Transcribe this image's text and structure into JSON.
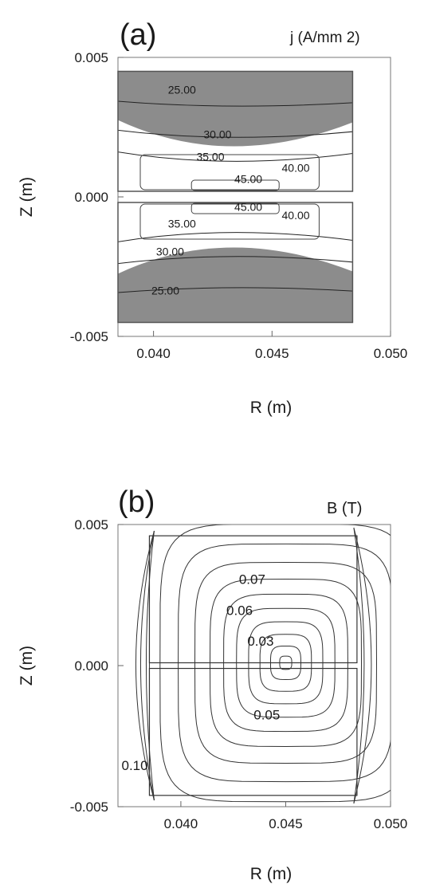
{
  "chart_data": [
    {
      "type": "contour",
      "panel_label": "(a)",
      "quantity_label": "j (A/mm 2)",
      "xlabel": "R (m)",
      "ylabel": "Z (m)",
      "xlim": [
        0.0385,
        0.05
      ],
      "ylim": [
        -0.005,
        0.005
      ],
      "x_ticks": [
        {
          "value": 0.04,
          "label": "0.040"
        },
        {
          "value": 0.045,
          "label": "0.045"
        },
        {
          "value": 0.05,
          "label": "0.050"
        }
      ],
      "y_ticks": [
        {
          "value": 0.005,
          "label": "0.005"
        },
        {
          "value": 0.0,
          "label": "0.000"
        },
        {
          "value": -0.005,
          "label": "-0.005"
        }
      ],
      "filled_color": "#8c8c8c",
      "coil_blocks": [
        {
          "r": [
            0.0385,
            0.0484
          ],
          "z": [
            0.0002,
            0.0045
          ]
        },
        {
          "r": [
            0.0385,
            0.0484
          ],
          "z": [
            -0.0045,
            -0.0002
          ]
        }
      ],
      "contour_labels": [
        {
          "text": "25.00",
          "r": 0.0412,
          "z": 0.0037
        },
        {
          "text": "30.00",
          "r": 0.0427,
          "z": 0.0021
        },
        {
          "text": "35.00",
          "r": 0.0424,
          "z": 0.0013
        },
        {
          "text": "45.00",
          "r": 0.044,
          "z": 0.0005
        },
        {
          "text": "40.00",
          "r": 0.046,
          "z": 0.0009
        },
        {
          "text": "45.00",
          "r": 0.044,
          "z": -0.0005
        },
        {
          "text": "40.00",
          "r": 0.046,
          "z": -0.0008
        },
        {
          "text": "35.00",
          "r": 0.0412,
          "z": -0.0011
        },
        {
          "text": "30.00",
          "r": 0.0407,
          "z": -0.0021
        },
        {
          "text": "25.00",
          "r": 0.0405,
          "z": -0.0035
        }
      ]
    },
    {
      "type": "contour",
      "panel_label": "(b)",
      "quantity_label": "B (T)",
      "xlabel": "R (m)",
      "ylabel": "Z (m)",
      "xlim": [
        0.037,
        0.05
      ],
      "ylim": [
        -0.005,
        0.005
      ],
      "x_ticks": [
        {
          "value": 0.04,
          "label": "0.040"
        },
        {
          "value": 0.045,
          "label": "0.045"
        },
        {
          "value": 0.05,
          "label": "0.050"
        }
      ],
      "y_ticks": [
        {
          "value": 0.005,
          "label": "0.005"
        },
        {
          "value": 0.0,
          "label": "0.000"
        },
        {
          "value": -0.005,
          "label": "-0.005"
        }
      ],
      "contour_center": {
        "r": 0.045,
        "z": 0.0001
      },
      "coil_blocks": [
        {
          "r": [
            0.0385,
            0.0484
          ],
          "z": [
            0.0001,
            0.0046
          ]
        },
        {
          "r": [
            0.0385,
            0.0484
          ],
          "z": [
            -0.0046,
            -0.0001
          ]
        }
      ],
      "contour_labels": [
        {
          "text": "0.07",
          "r": 0.0434,
          "z": 0.0029
        },
        {
          "text": "0.06",
          "r": 0.0428,
          "z": 0.0018
        },
        {
          "text": "0.03",
          "r": 0.0438,
          "z": 0.0007
        },
        {
          "text": "0.05",
          "r": 0.0441,
          "z": -0.0019
        },
        {
          "text": "0.10",
          "r": 0.0378,
          "z": -0.0037
        }
      ]
    }
  ]
}
